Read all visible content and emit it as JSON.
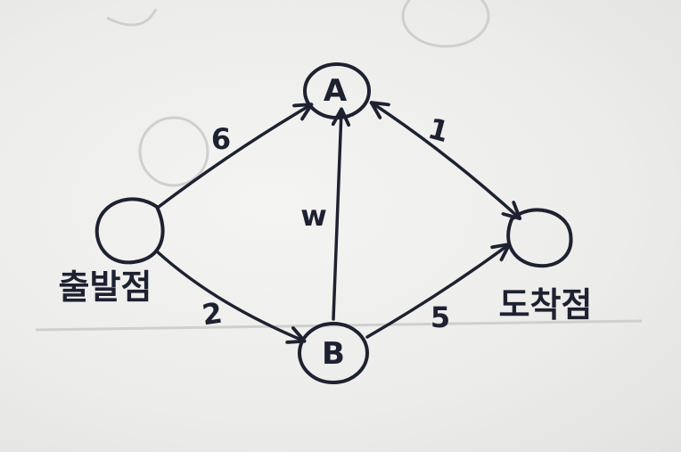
{
  "diagram": {
    "nodes": [
      {
        "id": "start",
        "label": "",
        "caption": "출발점"
      },
      {
        "id": "A",
        "label": "A",
        "caption": ""
      },
      {
        "id": "B",
        "label": "B",
        "caption": ""
      },
      {
        "id": "end",
        "label": "",
        "caption": "도착점"
      }
    ],
    "edges": [
      {
        "id": "start-A",
        "from": "start",
        "to": "A",
        "weight": "6",
        "directed": true
      },
      {
        "id": "start-B",
        "from": "start",
        "to": "B",
        "weight": "2",
        "directed": true
      },
      {
        "id": "B-A",
        "from": "B",
        "to": "A",
        "weight": "w",
        "directed": true
      },
      {
        "id": "A-end",
        "from": "A",
        "to": "end",
        "weight": "1",
        "directed": true,
        "bidirectional": true
      },
      {
        "id": "B-end",
        "from": "B",
        "to": "end",
        "weight": "5",
        "directed": true
      }
    ]
  },
  "colors": {
    "ink": "#1e2130",
    "paper": "#ededeb"
  }
}
